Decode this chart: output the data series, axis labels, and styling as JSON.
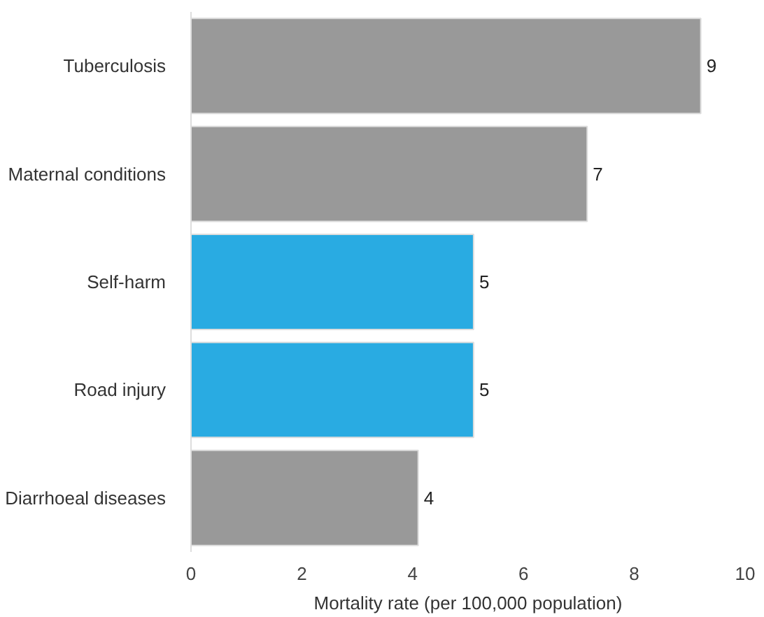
{
  "chart_data": {
    "type": "bar",
    "orientation": "horizontal",
    "categories": [
      "Tuberculosis",
      "Maternal conditions",
      "Self-harm",
      "Road injury",
      "Diarrhoeal diseases"
    ],
    "values": [
      9.2,
      7.15,
      5.1,
      5.1,
      4.1
    ],
    "colors": [
      "#999999",
      "#999999",
      "#29abe2",
      "#29abe2",
      "#999999"
    ],
    "value_labels": [
      "9",
      "7",
      "5",
      "5",
      "4"
    ],
    "xlabel": "Mortality rate (per 100,000 population)",
    "xlim": [
      0,
      10
    ],
    "xticks": [
      0,
      2,
      4,
      6,
      8,
      10
    ]
  }
}
